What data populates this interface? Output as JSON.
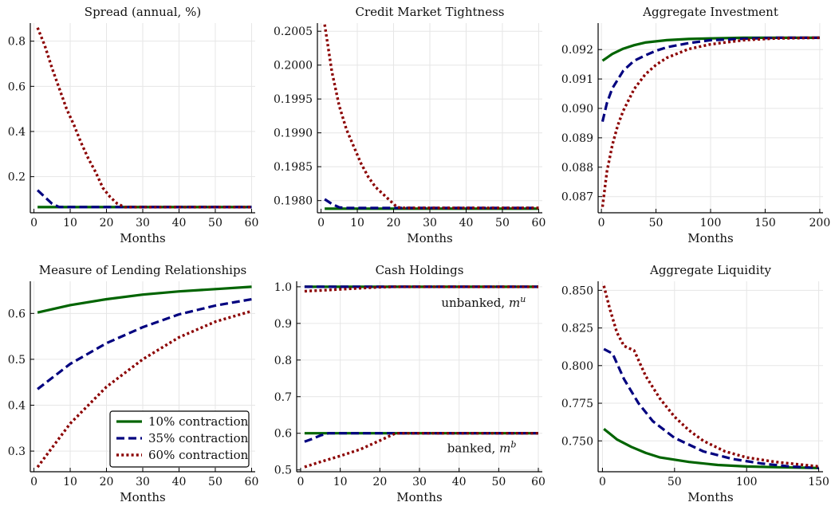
{
  "colors": {
    "s10": "#006400",
    "s35": "#00007f",
    "s60": "#8b0000"
  },
  "legend_labels": [
    "10% contraction",
    "35% contraction",
    "60% contraction"
  ],
  "chart_data": [
    {
      "type": "line",
      "title": "Spread (annual, %)",
      "xlabel": "Months",
      "xlim": [
        -1,
        61
      ],
      "ylim": [
        0.04,
        0.88
      ],
      "xticks": [
        0,
        10,
        20,
        30,
        40,
        50,
        60
      ],
      "yticks": [
        0.2,
        0.4,
        0.6,
        0.8
      ],
      "ytick_labels": [
        "0.2",
        "0.4",
        "0.6",
        "0.8"
      ],
      "grid": true,
      "series": [
        {
          "style": "solid",
          "x": [
            1,
            60
          ],
          "y": [
            0.065,
            0.065
          ]
        },
        {
          "style": "dashed",
          "x": [
            1,
            3,
            5,
            7,
            60
          ],
          "y": [
            0.14,
            0.11,
            0.08,
            0.065,
            0.065
          ]
        },
        {
          "style": "dotted",
          "x": [
            1,
            3,
            5,
            7,
            9,
            11,
            13,
            15,
            17,
            19,
            21,
            23,
            25,
            60
          ],
          "y": [
            0.86,
            0.78,
            0.68,
            0.59,
            0.5,
            0.43,
            0.35,
            0.28,
            0.22,
            0.15,
            0.11,
            0.08,
            0.065,
            0.065
          ]
        }
      ]
    },
    {
      "type": "line",
      "title": "Credit Market Tightness",
      "xlabel": "Months",
      "xlim": [
        -1,
        61
      ],
      "ylim": [
        0.19782,
        0.20062
      ],
      "xticks": [
        0,
        10,
        20,
        30,
        40,
        50,
        60
      ],
      "yticks": [
        0.198,
        0.1985,
        0.199,
        0.1995,
        0.2,
        0.2005
      ],
      "ytick_labels": [
        "0.1980",
        "0.1985",
        "0.1990",
        "0.1995",
        "0.2000",
        "0.2005"
      ],
      "grid": true,
      "series": [
        {
          "style": "solid",
          "x": [
            1,
            60
          ],
          "y": [
            0.19788,
            0.19788
          ]
        },
        {
          "style": "dashed",
          "x": [
            1,
            3,
            5,
            7,
            60
          ],
          "y": [
            0.19802,
            0.19795,
            0.1979,
            0.19789,
            0.19789
          ]
        },
        {
          "style": "dotted",
          "x": [
            1,
            3,
            5,
            7,
            9,
            11,
            13,
            15,
            17,
            19,
            21,
            23,
            60
          ],
          "y": [
            0.2006,
            0.1999,
            0.1994,
            0.19905,
            0.1988,
            0.19855,
            0.19835,
            0.1982,
            0.1981,
            0.198,
            0.1979,
            0.19789,
            0.19789
          ]
        }
      ]
    },
    {
      "type": "line",
      "title": "Aggregate Investment",
      "xlabel": "Months",
      "xlim": [
        -3,
        203
      ],
      "ylim": [
        0.08645,
        0.0929
      ],
      "xticks": [
        0,
        50,
        100,
        150,
        200
      ],
      "yticks": [
        0.087,
        0.088,
        0.089,
        0.09,
        0.091,
        0.092
      ],
      "ytick_labels": [
        "0.087",
        "0.088",
        "0.089",
        "0.090",
        "0.091",
        "0.092"
      ],
      "grid": true,
      "series": [
        {
          "style": "solid",
          "x": [
            1,
            10,
            20,
            30,
            40,
            60,
            80,
            100,
            130,
            160,
            200
          ],
          "y": [
            0.09162,
            0.09185,
            0.09203,
            0.09215,
            0.09224,
            0.09232,
            0.09236,
            0.09238,
            0.0924,
            0.0924,
            0.0924
          ]
        },
        {
          "style": "dashed",
          "x": [
            1,
            5,
            10,
            20,
            30,
            40,
            50,
            60,
            80,
            100,
            130,
            160,
            200
          ],
          "y": [
            0.08955,
            0.09018,
            0.09068,
            0.09128,
            0.09162,
            0.0918,
            0.09196,
            0.09208,
            0.09222,
            0.09232,
            0.09237,
            0.0924,
            0.0924
          ]
        },
        {
          "style": "dotted",
          "x": [
            1,
            5,
            10,
            15,
            20,
            30,
            40,
            50,
            60,
            80,
            100,
            130,
            160,
            200
          ],
          "y": [
            0.08665,
            0.08785,
            0.08875,
            0.08942,
            0.08992,
            0.09066,
            0.09115,
            0.09148,
            0.09172,
            0.09202,
            0.09218,
            0.09232,
            0.09238,
            0.0924
          ]
        }
      ]
    },
    {
      "type": "line",
      "title": "Measure of Lending Relationships",
      "xlabel": "Months",
      "xlim": [
        -1,
        61
      ],
      "ylim": [
        0.255,
        0.67
      ],
      "xticks": [
        0,
        10,
        20,
        30,
        40,
        50,
        60
      ],
      "yticks": [
        0.3,
        0.4,
        0.5,
        0.6
      ],
      "ytick_labels": [
        "0.3",
        "0.4",
        "0.5",
        "0.6"
      ],
      "grid": true,
      "legend": "lower-right",
      "series": [
        {
          "style": "solid",
          "x": [
            1,
            10,
            20,
            30,
            40,
            50,
            60
          ],
          "y": [
            0.602,
            0.618,
            0.631,
            0.641,
            0.648,
            0.653,
            0.658
          ]
        },
        {
          "style": "dashed",
          "x": [
            1,
            10,
            20,
            30,
            40,
            50,
            60
          ],
          "y": [
            0.435,
            0.49,
            0.535,
            0.57,
            0.598,
            0.617,
            0.631
          ]
        },
        {
          "style": "dotted",
          "x": [
            1,
            10,
            20,
            30,
            40,
            50,
            60
          ],
          "y": [
            0.265,
            0.36,
            0.44,
            0.5,
            0.548,
            0.582,
            0.605
          ]
        }
      ]
    },
    {
      "type": "line",
      "title": "Cash Holdings",
      "xlabel": "Months",
      "xlim": [
        -1,
        61
      ],
      "ylim": [
        0.495,
        1.015
      ],
      "xticks": [
        0,
        10,
        20,
        30,
        40,
        50,
        60
      ],
      "yticks": [
        0.5,
        0.6,
        0.7,
        0.8,
        0.9,
        1.0
      ],
      "ytick_labels": [
        "0.5",
        "0.6",
        "0.7",
        "0.8",
        "0.9",
        "1.0"
      ],
      "grid": true,
      "annotations": [
        {
          "text": "unbanked, ",
          "math": "m",
          "sup": "u",
          "x": 35.5,
          "y": 0.945
        },
        {
          "text": "banked, ",
          "math": "m",
          "sup": "b",
          "x": 37,
          "y": 0.548
        }
      ],
      "series": [
        {
          "style": "solid",
          "x": [
            1,
            60
          ],
          "y": [
            1.0,
            1.0
          ]
        },
        {
          "style": "dashed",
          "x": [
            1,
            60
          ],
          "y": [
            1.0,
            1.0
          ]
        },
        {
          "style": "dotted",
          "x": [
            1,
            5,
            10,
            15,
            20,
            24,
            60
          ],
          "y": [
            0.988,
            0.99,
            0.993,
            0.996,
            0.999,
            1.0,
            1.0
          ]
        },
        {
          "style": "solid",
          "x": [
            1,
            60
          ],
          "y": [
            0.6,
            0.6
          ]
        },
        {
          "style": "dashed",
          "x": [
            1,
            3,
            5,
            7,
            60
          ],
          "y": [
            0.577,
            0.585,
            0.594,
            0.6,
            0.6
          ]
        },
        {
          "style": "dotted",
          "x": [
            1,
            5,
            10,
            15,
            20,
            24,
            60
          ],
          "y": [
            0.508,
            0.522,
            0.538,
            0.556,
            0.58,
            0.6,
            0.6
          ]
        }
      ]
    },
    {
      "type": "line",
      "title": "Aggregate Liquidity",
      "xlabel": "Months",
      "xlim": [
        -3,
        153
      ],
      "ylim": [
        0.7295,
        0.856
      ],
      "xticks": [
        0,
        50,
        100,
        150
      ],
      "yticks": [
        0.75,
        0.775,
        0.8,
        0.825,
        0.85
      ],
      "ytick_labels": [
        "0.750",
        "0.775",
        "0.800",
        "0.825",
        "0.850"
      ],
      "grid": true,
      "series": [
        {
          "style": "solid",
          "x": [
            1,
            10,
            20,
            30,
            40,
            60,
            80,
            100,
            120,
            150
          ],
          "y": [
            0.758,
            0.751,
            0.746,
            0.742,
            0.739,
            0.736,
            0.734,
            0.733,
            0.7325,
            0.732
          ]
        },
        {
          "style": "dashed",
          "x": [
            1,
            7,
            15,
            25,
            35,
            50,
            70,
            90,
            110,
            130,
            150
          ],
          "y": [
            0.811,
            0.808,
            0.791,
            0.775,
            0.763,
            0.752,
            0.743,
            0.738,
            0.735,
            0.733,
            0.732
          ]
        },
        {
          "style": "dotted",
          "x": [
            1,
            5,
            10,
            15,
            22,
            30,
            40,
            50,
            60,
            70,
            85,
            100,
            120,
            150
          ],
          "y": [
            0.853,
            0.838,
            0.822,
            0.813,
            0.81,
            0.793,
            0.778,
            0.766,
            0.757,
            0.75,
            0.743,
            0.739,
            0.736,
            0.733
          ]
        }
      ]
    }
  ]
}
